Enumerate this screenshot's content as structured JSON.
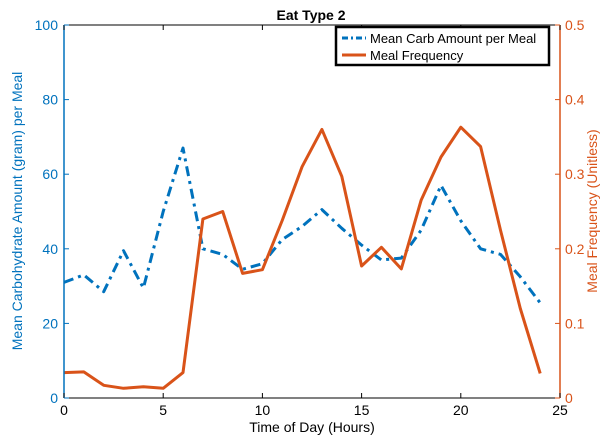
{
  "chart_data": {
    "type": "line",
    "title": "Eat Type 2",
    "xlabel": "Time of Day (Hours)",
    "xlim": [
      0,
      25
    ],
    "xticks": [
      0,
      5,
      10,
      15,
      20,
      25
    ],
    "ylabel_left": "Mean Carbohydrate Amount (gram) per Meal",
    "ylim_left": [
      0,
      100
    ],
    "yticks_left": [
      0,
      20,
      40,
      60,
      80,
      100
    ],
    "ylabel_right": "Meal Frequency (Unitless)",
    "ylim_right": [
      0,
      0.5
    ],
    "yticks_right": [
      "0",
      "0.1",
      "0.2",
      "0.3",
      "0.4",
      "0.5"
    ],
    "legend_position": "top-right",
    "colors": {
      "left_axis": "#0072BD",
      "right_axis": "#D95319"
    },
    "series": [
      {
        "name": "Mean Carb Amount per Meal",
        "axis": "left",
        "style": "dash-dot",
        "color": "#0072BD",
        "x": [
          0,
          1,
          2,
          3,
          4,
          5,
          6,
          7,
          8,
          9,
          10,
          11,
          12,
          13,
          14,
          15,
          16,
          17,
          18,
          19,
          20,
          21,
          22,
          23,
          24
        ],
        "y": [
          31,
          33,
          28.5,
          39.5,
          29.5,
          50,
          67,
          40,
          38.5,
          34.5,
          36,
          42.5,
          46,
          50.5,
          45.5,
          41,
          37,
          37.5,
          45,
          57,
          47.5,
          40,
          38.5,
          32.5,
          25.5
        ]
      },
      {
        "name": "Meal Frequency",
        "axis": "right",
        "style": "solid",
        "color": "#D95319",
        "x": [
          0,
          1,
          2,
          3,
          4,
          5,
          6,
          7,
          8,
          9,
          10,
          11,
          12,
          13,
          14,
          15,
          16,
          17,
          18,
          19,
          20,
          21,
          22,
          23,
          24
        ],
        "y": [
          0.034,
          0.035,
          0.017,
          0.013,
          0.015,
          0.013,
          0.034,
          0.24,
          0.25,
          0.167,
          0.172,
          0.238,
          0.31,
          0.36,
          0.297,
          0.177,
          0.202,
          0.173,
          0.265,
          0.323,
          0.363,
          0.337,
          0.225,
          0.12,
          0.033
        ]
      }
    ]
  }
}
